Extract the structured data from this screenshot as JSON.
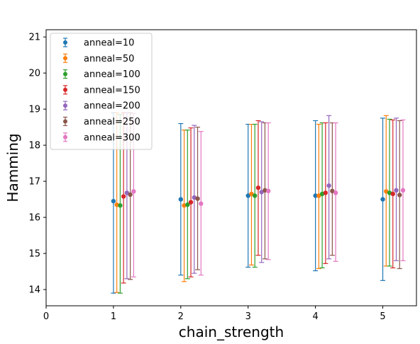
{
  "chart_data": {
    "type": "scatter",
    "subtype": "errorbar",
    "xlabel": "chain_strength",
    "ylabel": "Hamming",
    "xlim": [
      0,
      5.5
    ],
    "ylim": [
      13.55,
      21.2
    ],
    "xticks": [
      0,
      1,
      2,
      3,
      4,
      5
    ],
    "yticks": [
      14,
      15,
      16,
      17,
      18,
      19,
      20,
      21
    ],
    "grid": false,
    "legend_position": "top-left",
    "series": [
      {
        "name": "anneal=10",
        "color": "#1f77b4",
        "x": [
          1.0,
          2.0,
          3.0,
          4.0,
          5.0
        ],
        "y": [
          16.45,
          16.5,
          16.6,
          16.6,
          16.5
        ],
        "err_low": [
          13.9,
          14.4,
          14.62,
          14.52,
          14.25
        ],
        "err_high": [
          18.9,
          18.6,
          18.58,
          18.68,
          18.75
        ]
      },
      {
        "name": "anneal=50",
        "color": "#ff7f0e",
        "x": [
          1.05,
          2.05,
          3.05,
          4.05,
          5.05
        ],
        "y": [
          16.35,
          16.33,
          16.65,
          16.6,
          16.72
        ],
        "err_low": [
          13.92,
          14.22,
          14.68,
          14.58,
          14.65
        ],
        "err_high": [
          18.9,
          18.42,
          18.58,
          18.58,
          18.82
        ]
      },
      {
        "name": "anneal=100",
        "color": "#2ca02c",
        "x": [
          1.1,
          2.1,
          3.1,
          4.1,
          5.1
        ],
        "y": [
          16.33,
          16.35,
          16.6,
          16.65,
          16.68
        ],
        "err_low": [
          13.9,
          14.3,
          14.62,
          14.6,
          14.65
        ],
        "err_high": [
          18.85,
          18.42,
          18.58,
          18.62,
          18.72
        ]
      },
      {
        "name": "anneal=150",
        "color": "#d62728",
        "x": [
          1.15,
          2.15,
          3.15,
          4.15,
          5.15
        ],
        "y": [
          16.58,
          16.42,
          16.82,
          16.68,
          16.65
        ],
        "err_low": [
          14.18,
          14.35,
          14.95,
          14.72,
          14.6
        ],
        "err_high": [
          18.9,
          18.48,
          18.68,
          18.62,
          18.7
        ]
      },
      {
        "name": "anneal=200",
        "color": "#9467bd",
        "x": [
          1.2,
          2.2,
          3.2,
          4.2,
          5.2
        ],
        "y": [
          16.68,
          16.55,
          16.7,
          16.88,
          16.75
        ],
        "err_low": [
          14.3,
          14.45,
          14.75,
          14.85,
          14.8
        ],
        "err_high": [
          18.9,
          18.55,
          18.65,
          18.82,
          18.75
        ]
      },
      {
        "name": "anneal=250",
        "color": "#8c564b",
        "x": [
          1.25,
          2.25,
          3.25,
          4.25,
          5.25
        ],
        "y": [
          16.63,
          16.52,
          16.75,
          16.73,
          16.62
        ],
        "err_low": [
          14.28,
          14.55,
          14.85,
          14.95,
          14.58
        ],
        "err_high": [
          18.9,
          18.5,
          18.62,
          18.62,
          18.68
        ]
      },
      {
        "name": "anneal=300",
        "color": "#e377c2",
        "x": [
          1.3,
          2.3,
          3.3,
          4.3,
          5.3
        ],
        "y": [
          16.72,
          16.38,
          16.73,
          16.68,
          16.75
        ],
        "err_low": [
          14.35,
          14.4,
          14.83,
          14.78,
          14.8
        ],
        "err_high": [
          18.88,
          18.38,
          18.62,
          18.62,
          18.7
        ]
      }
    ]
  }
}
